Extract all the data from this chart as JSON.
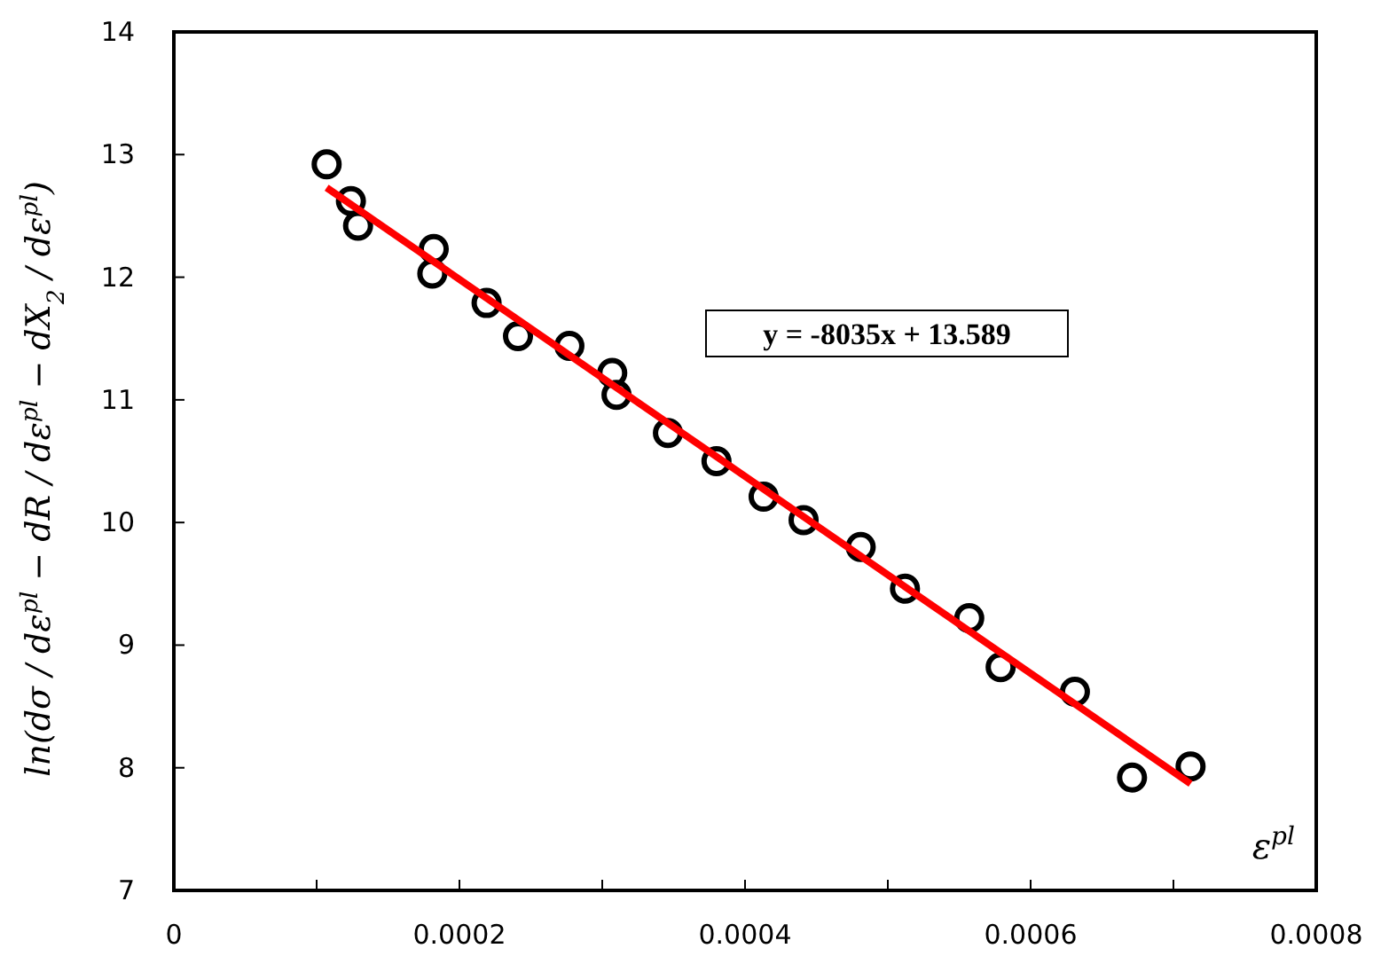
{
  "chart_data": {
    "type": "scatter",
    "xlabel": "ε$^{pl}$",
    "ylabel": "ln(dσ / dε$^{pl}$ − dR / dε$^{pl}$ − dX$_{2}$ / dε$^{pl}$)",
    "annotations": [
      "y = -8035x + 13.589"
    ],
    "xlim": [
      0,
      0.0008
    ],
    "ylim": [
      7,
      14
    ],
    "xticks": [
      0,
      {
        "value": 0.0001,
        "label": null
      },
      0.0002,
      {
        "value": 0.0003,
        "label": null
      },
      0.0004,
      {
        "value": 0.0005,
        "label": null
      },
      0.0006,
      {
        "value": 0.0007,
        "label": null
      },
      0.0008
    ],
    "yticks": [
      7,
      8,
      9,
      10,
      11,
      12,
      13,
      14
    ],
    "grid": false,
    "series": [
      {
        "color": "#000000",
        "marker": "circle",
        "x": [
          0.000107,
          0.000124,
          0.000129,
          0.000182,
          0.000181,
          0.000219,
          0.000241,
          0.000277,
          0.000307,
          0.00031,
          0.000346,
          0.00038,
          0.000413,
          0.000441,
          0.000481,
          0.000512,
          0.000557,
          0.000579,
          0.000631,
          0.000671,
          0.000712
        ],
        "values": [
          12.92,
          12.62,
          12.42,
          12.23,
          12.03,
          11.79,
          11.52,
          11.44,
          11.22,
          11.04,
          10.73,
          10.5,
          10.21,
          10.02,
          9.8,
          9.46,
          9.22,
          8.82,
          8.62,
          7.92,
          8.01
        ]
      },
      {
        "type": "line",
        "color": "#ff0000",
        "marker": "none",
        "line_style": "solid",
        "x": [
          0.000107,
          0.000712
        ],
        "values": [
          12.73,
          7.87
        ]
      }
    ]
  }
}
